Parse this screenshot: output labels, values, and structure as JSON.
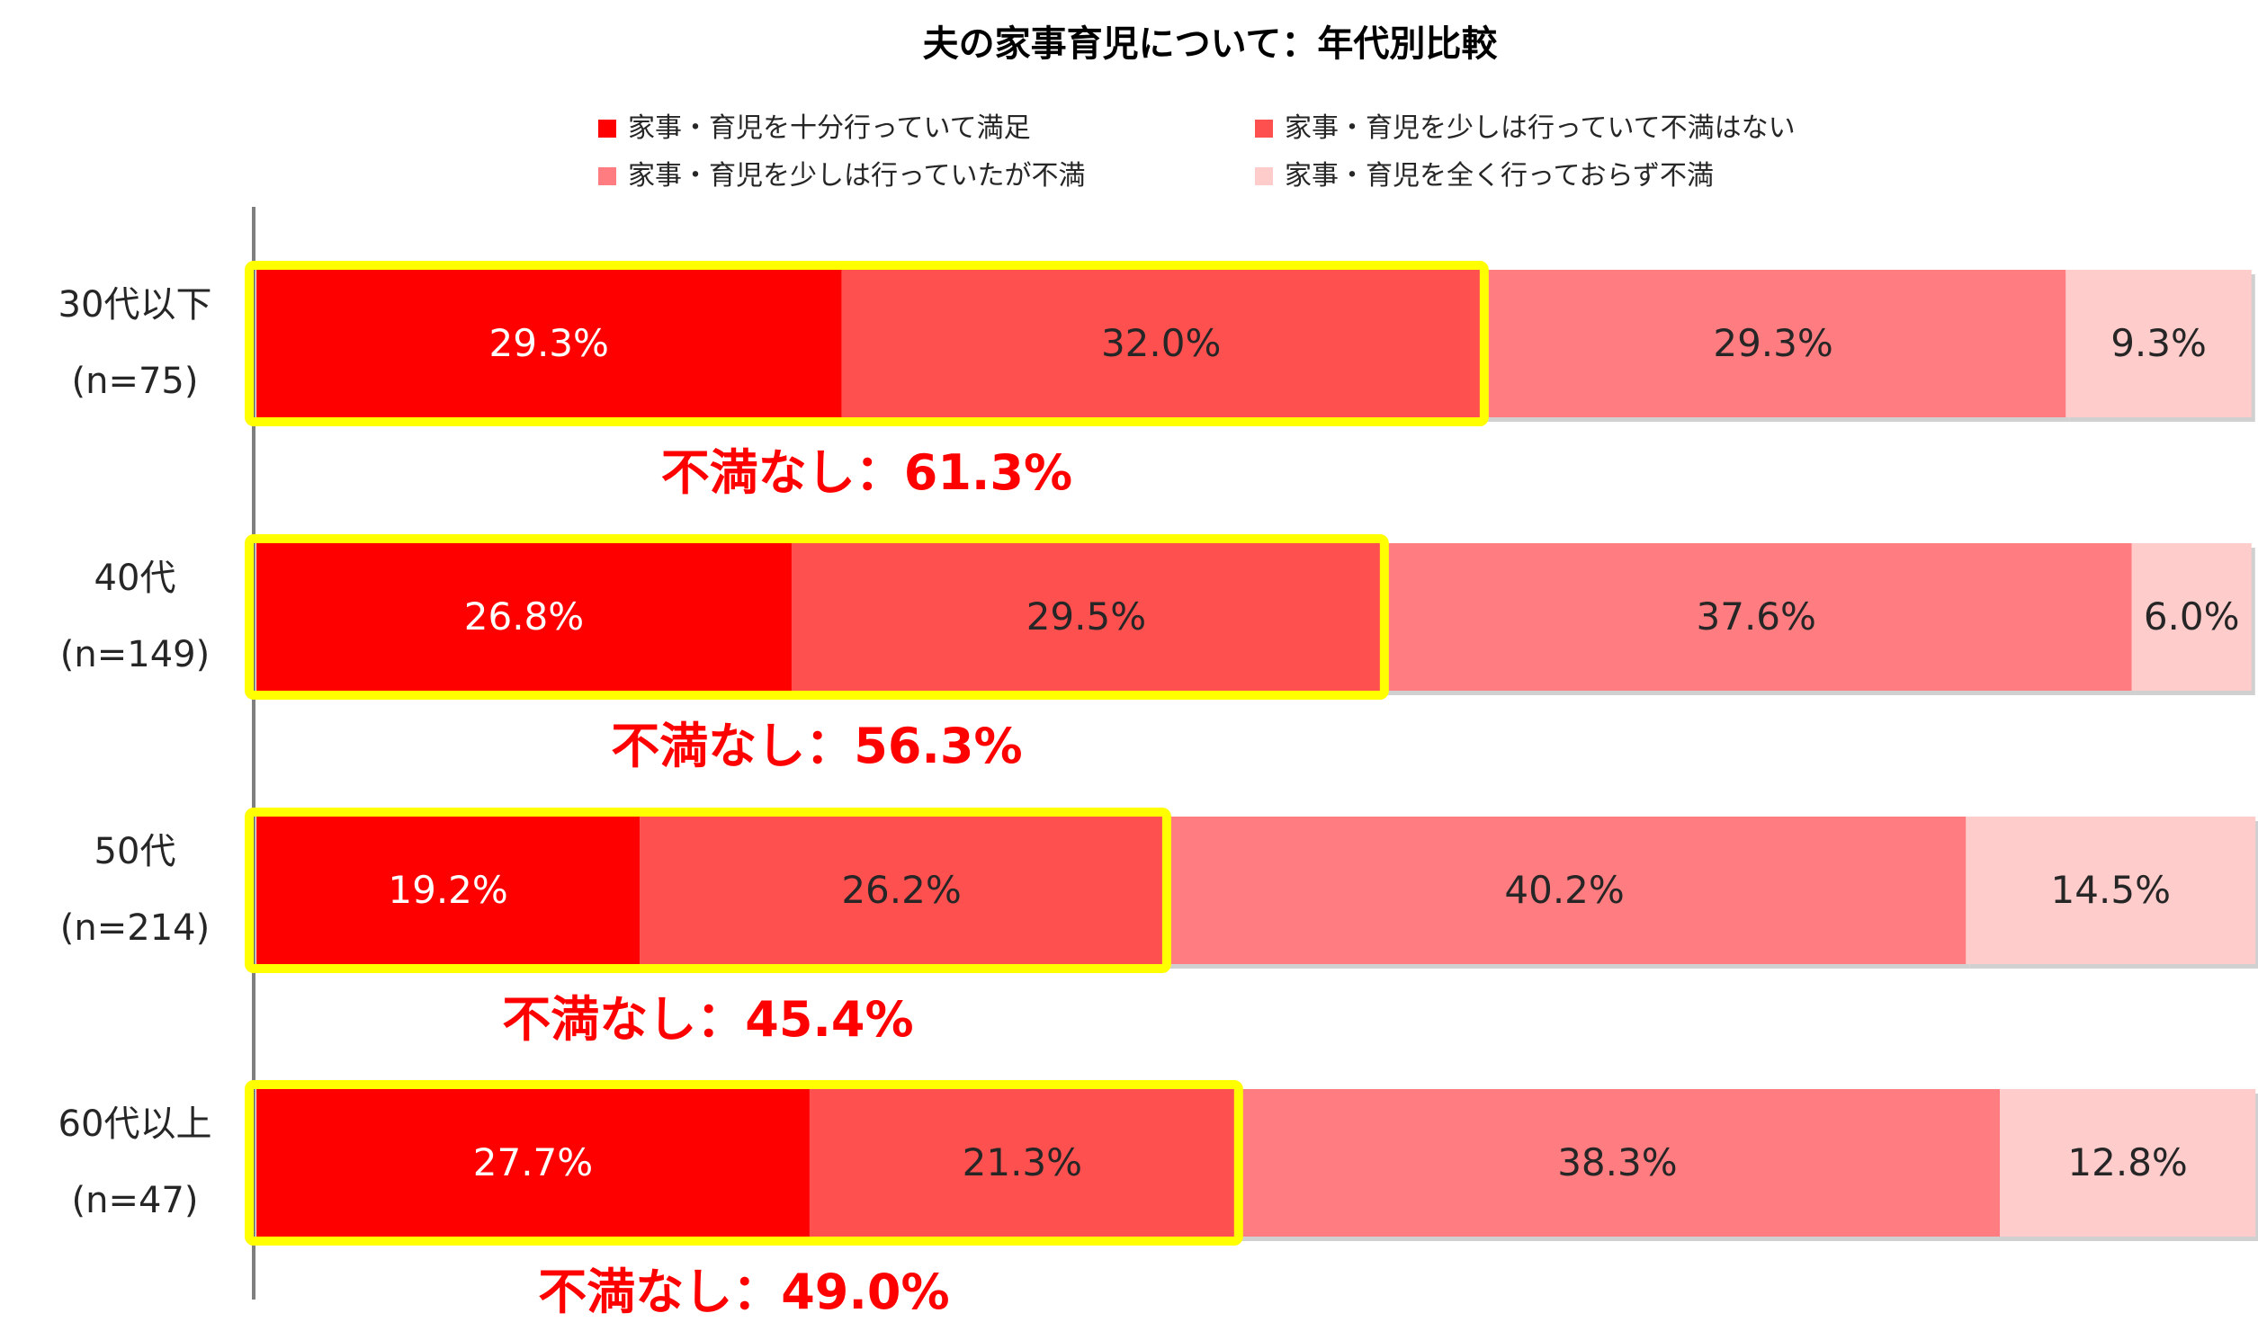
{
  "chart_data": {
    "type": "bar",
    "orientation": "horizontal",
    "stacked": true,
    "percent_stacked": true,
    "title": "夫の家事育児について：年代別比較",
    "categories": [
      {
        "label": "30代以下",
        "n": "(n=75)"
      },
      {
        "label": "40代",
        "n": "(n=149)"
      },
      {
        "label": "50代",
        "n": "(n=214)"
      },
      {
        "label": "60代以上",
        "n": "(n=47)"
      }
    ],
    "series": [
      {
        "name": "家事・育児を十分行っていて満足",
        "color": "#FF0000",
        "label_color": "#FFFFFF",
        "values": [
          29.3,
          26.8,
          19.2,
          27.7
        ]
      },
      {
        "name": "家事・育児を少しは行っていて不満はない",
        "color": "#FF5050",
        "label_color": "#262626",
        "values": [
          32.0,
          29.5,
          26.2,
          21.3
        ]
      },
      {
        "name": "家事・育児を少しは行っていたが不満",
        "color": "#FF7C80",
        "label_color": "#262626",
        "values": [
          29.3,
          37.6,
          40.2,
          38.3
        ]
      },
      {
        "name": "家事・育児を全く行っておらず不満",
        "color": "#FFCCCC",
        "label_color": "#262626",
        "values": [
          9.3,
          6.0,
          14.5,
          12.8
        ]
      }
    ],
    "annotations": [
      {
        "label": "不満なし：",
        "value": "61.3%"
      },
      {
        "label": "不満なし：",
        "value": "56.3%"
      },
      {
        "label": "不満なし：",
        "value": "45.4%"
      },
      {
        "label": "不満なし：",
        "value": "49.0%"
      }
    ],
    "highlight_color": "#FFFF00",
    "annotation_color": "#FF0000",
    "xlim": [
      0,
      100
    ],
    "legend_position": "top",
    "grid": false
  }
}
